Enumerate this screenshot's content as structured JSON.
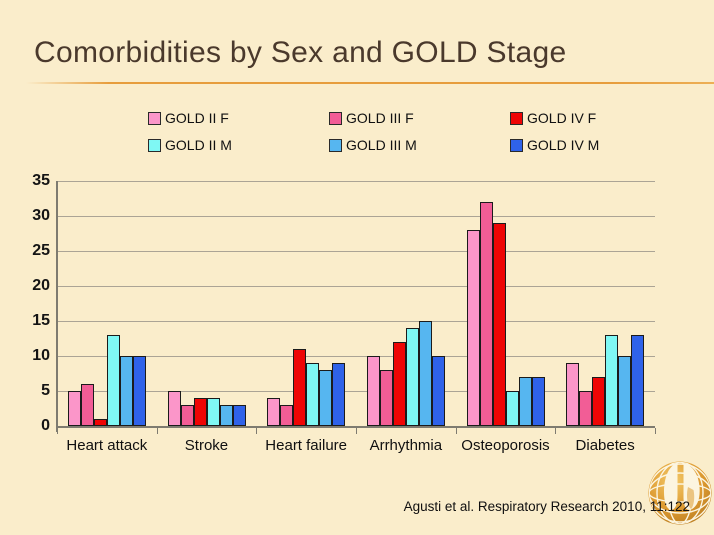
{
  "slide": {
    "title": "Comorbidities by Sex and GOLD Stage",
    "citation": "Agusti et al. Respiratory Research 2010, 11:122",
    "background_color": "#FAEDCB",
    "title_color": "#4A392C",
    "accent_line_color": "#E79D3C"
  },
  "logo": {
    "description": "gold globe with white lungs emblem",
    "color": "#DD9A31"
  },
  "chart_data": {
    "type": "bar",
    "title": "Comorbidities by Sex and GOLD Stage",
    "categories": [
      "Heart attack",
      "Stroke",
      "Heart failure",
      "Arrhythmia",
      "Osteoporosis",
      "Diabetes"
    ],
    "series": [
      {
        "name": "GOLD II F",
        "color": "#FB96C9",
        "values": [
          5,
          5,
          4,
          10,
          28,
          9
        ]
      },
      {
        "name": "GOLD III F",
        "color": "#F25D96",
        "values": [
          6,
          3,
          3,
          8,
          32,
          5
        ]
      },
      {
        "name": "GOLD IV F",
        "color": "#EE0505",
        "values": [
          1,
          4,
          11,
          12,
          29,
          7
        ]
      },
      {
        "name": "GOLD II M",
        "color": "#7FF8F4",
        "values": [
          13,
          4,
          9,
          14,
          5,
          13
        ]
      },
      {
        "name": "GOLD III M",
        "color": "#56B6F0",
        "values": [
          10,
          3,
          8,
          15,
          7,
          10
        ]
      },
      {
        "name": "GOLD IV M",
        "color": "#2F62E9",
        "values": [
          10,
          3,
          9,
          10,
          7,
          13
        ]
      }
    ],
    "xlabel": "",
    "ylabel": "",
    "ylim": [
      0,
      35
    ],
    "yticks": [
      0,
      5,
      10,
      15,
      20,
      25,
      30,
      35
    ],
    "grid": true,
    "legend_position": "top"
  }
}
